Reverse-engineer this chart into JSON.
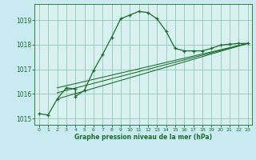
{
  "xlabel": "Graphe pression niveau de la mer (hPa)",
  "background_color": "#c8eaf0",
  "plot_bg_color": "#d8f0f0",
  "grid_color": "#90c8b4",
  "line_color": "#1a6b2a",
  "xlim": [
    -0.5,
    23.5
  ],
  "ylim": [
    1014.75,
    1019.65
  ],
  "yticks": [
    1015,
    1016,
    1017,
    1018,
    1019
  ],
  "xticks": [
    0,
    1,
    2,
    3,
    4,
    5,
    6,
    7,
    8,
    9,
    10,
    11,
    12,
    13,
    14,
    15,
    16,
    17,
    18,
    19,
    20,
    21,
    22,
    23
  ],
  "main_x": [
    0,
    1,
    2,
    3,
    4,
    4,
    5,
    6,
    7,
    8,
    9,
    10,
    11,
    12,
    13,
    14,
    15,
    16,
    17,
    18,
    19,
    20,
    21,
    22,
    23
  ],
  "main_y": [
    1015.2,
    1015.15,
    1015.8,
    1016.25,
    1016.2,
    1015.9,
    1016.15,
    1016.95,
    1017.6,
    1018.3,
    1019.05,
    1019.2,
    1019.35,
    1019.3,
    1019.05,
    1018.55,
    1017.85,
    1017.75,
    1017.75,
    1017.75,
    1017.85,
    1017.98,
    1018.02,
    1018.05,
    1018.05
  ],
  "trend_lines": [
    {
      "x": [
        2,
        23
      ],
      "y": [
        1015.8,
        1018.05
      ]
    },
    {
      "x": [
        2,
        23
      ],
      "y": [
        1016.05,
        1018.05
      ]
    },
    {
      "x": [
        2,
        23
      ],
      "y": [
        1016.25,
        1018.05
      ]
    }
  ]
}
